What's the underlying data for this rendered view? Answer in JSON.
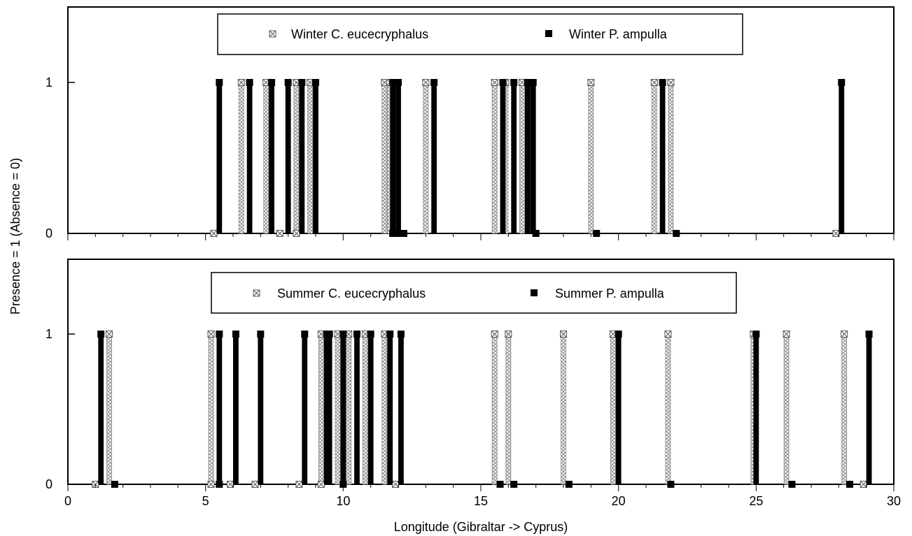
{
  "chart_data": [
    {
      "type": "bar",
      "panel": "winter",
      "xlim": [
        0,
        30
      ],
      "ylim": [
        0,
        1.5
      ],
      "yticks": [
        0,
        1
      ],
      "legend": {
        "position": "top-center",
        "entries": [
          {
            "label": "Winter C. eucecryphalus",
            "marker": "crossed-box",
            "color": "#b0b0b0"
          },
          {
            "label": "Winter P. ampulla",
            "marker": "filled-square",
            "color": "#000000"
          }
        ]
      },
      "series": [
        {
          "name": "Winter C. eucecryphalus",
          "style": "hatched",
          "points": [
            {
              "x": 5.3,
              "y": 0
            },
            {
              "x": 6.3,
              "y": 1
            },
            {
              "x": 7.2,
              "y": 1
            },
            {
              "x": 7.7,
              "y": 0
            },
            {
              "x": 8.3,
              "y": 1
            },
            {
              "x": 8.3,
              "y": 0
            },
            {
              "x": 8.8,
              "y": 1
            },
            {
              "x": 11.5,
              "y": 1
            },
            {
              "x": 11.7,
              "y": 1
            },
            {
              "x": 13.0,
              "y": 1
            },
            {
              "x": 15.5,
              "y": 1
            },
            {
              "x": 15.9,
              "y": 1
            },
            {
              "x": 16.5,
              "y": 1
            },
            {
              "x": 19.0,
              "y": 1
            },
            {
              "x": 21.3,
              "y": 1
            },
            {
              "x": 21.9,
              "y": 1
            },
            {
              "x": 27.9,
              "y": 0
            }
          ]
        },
        {
          "name": "Winter P. ampulla",
          "style": "solid",
          "points": [
            {
              "x": 5.5,
              "y": 1
            },
            {
              "x": 6.6,
              "y": 1
            },
            {
              "x": 7.4,
              "y": 1
            },
            {
              "x": 8.0,
              "y": 1
            },
            {
              "x": 8.5,
              "y": 1
            },
            {
              "x": 9.0,
              "y": 1
            },
            {
              "x": 11.8,
              "y": 1
            },
            {
              "x": 11.8,
              "y": 0
            },
            {
              "x": 12.0,
              "y": 1
            },
            {
              "x": 12.0,
              "y": 0
            },
            {
              "x": 12.2,
              "y": 0
            },
            {
              "x": 13.3,
              "y": 1
            },
            {
              "x": 15.8,
              "y": 1
            },
            {
              "x": 16.2,
              "y": 1
            },
            {
              "x": 16.7,
              "y": 1
            },
            {
              "x": 16.9,
              "y": 1
            },
            {
              "x": 17.0,
              "y": 0
            },
            {
              "x": 19.2,
              "y": 0
            },
            {
              "x": 21.6,
              "y": 1
            },
            {
              "x": 22.1,
              "y": 0
            },
            {
              "x": 28.1,
              "y": 1
            }
          ]
        }
      ]
    },
    {
      "type": "bar",
      "panel": "summer",
      "xlim": [
        0,
        30
      ],
      "ylim": [
        0,
        1.5
      ],
      "yticks": [
        0,
        1
      ],
      "xticks": [
        0,
        5,
        10,
        15,
        20,
        25,
        30
      ],
      "legend": {
        "position": "top-center",
        "entries": [
          {
            "label": "Summer C. eucecryphalus",
            "marker": "crossed-box",
            "color": "#b0b0b0"
          },
          {
            "label": "Summer P. ampulla",
            "marker": "filled-square",
            "color": "#000000"
          }
        ]
      },
      "series": [
        {
          "name": "Summer C. eucecryphalus",
          "style": "hatched",
          "points": [
            {
              "x": 1.0,
              "y": 0
            },
            {
              "x": 1.5,
              "y": 1
            },
            {
              "x": 5.2,
              "y": 1
            },
            {
              "x": 5.2,
              "y": 0
            },
            {
              "x": 5.9,
              "y": 0
            },
            {
              "x": 6.8,
              "y": 0
            },
            {
              "x": 8.4,
              "y": 0
            },
            {
              "x": 9.2,
              "y": 1
            },
            {
              "x": 9.2,
              "y": 0
            },
            {
              "x": 9.8,
              "y": 1
            },
            {
              "x": 10.2,
              "y": 1
            },
            {
              "x": 10.8,
              "y": 1
            },
            {
              "x": 11.5,
              "y": 1
            },
            {
              "x": 11.9,
              "y": 0
            },
            {
              "x": 15.5,
              "y": 1
            },
            {
              "x": 16.0,
              "y": 1
            },
            {
              "x": 18.0,
              "y": 1
            },
            {
              "x": 19.8,
              "y": 1
            },
            {
              "x": 21.8,
              "y": 1
            },
            {
              "x": 24.9,
              "y": 1
            },
            {
              "x": 26.1,
              "y": 1
            },
            {
              "x": 28.2,
              "y": 1
            },
            {
              "x": 28.9,
              "y": 0
            }
          ]
        },
        {
          "name": "Summer P. ampulla",
          "style": "solid",
          "points": [
            {
              "x": 1.2,
              "y": 1
            },
            {
              "x": 1.7,
              "y": 0
            },
            {
              "x": 5.5,
              "y": 1
            },
            {
              "x": 5.5,
              "y": 0
            },
            {
              "x": 6.1,
              "y": 1
            },
            {
              "x": 7.0,
              "y": 1
            },
            {
              "x": 8.6,
              "y": 1
            },
            {
              "x": 9.4,
              "y": 1
            },
            {
              "x": 9.5,
              "y": 1
            },
            {
              "x": 10.0,
              "y": 1
            },
            {
              "x": 10.0,
              "y": 0
            },
            {
              "x": 10.5,
              "y": 1
            },
            {
              "x": 11.0,
              "y": 1
            },
            {
              "x": 11.7,
              "y": 1
            },
            {
              "x": 12.1,
              "y": 1
            },
            {
              "x": 15.7,
              "y": 0
            },
            {
              "x": 16.2,
              "y": 0
            },
            {
              "x": 18.2,
              "y": 0
            },
            {
              "x": 20.0,
              "y": 1
            },
            {
              "x": 21.9,
              "y": 0
            },
            {
              "x": 25.0,
              "y": 1
            },
            {
              "x": 26.3,
              "y": 0
            },
            {
              "x": 28.4,
              "y": 0
            },
            {
              "x": 29.1,
              "y": 1
            }
          ]
        }
      ]
    }
  ],
  "axes": {
    "xlabel": "Longitude (Gibraltar -> Cyprus)",
    "ylabel": "Presence = 1 (Absence  = 0)",
    "ytick_labels": [
      "0",
      "1"
    ],
    "xtick_labels": [
      "0",
      "5",
      "10",
      "15",
      "20",
      "25",
      "30"
    ]
  }
}
